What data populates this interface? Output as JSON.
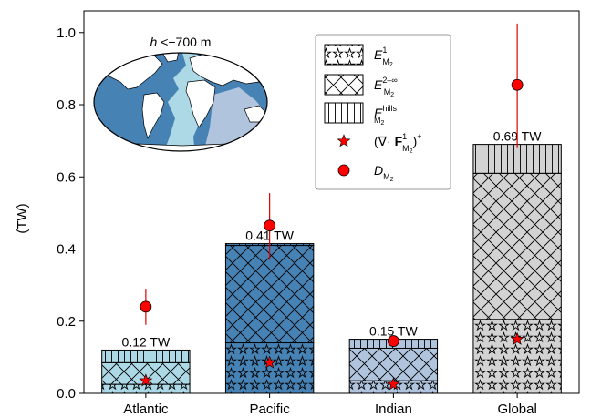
{
  "chart_data": {
    "type": "bar",
    "stacked": true,
    "ylabel": "(TW)",
    "ylim": [
      0,
      1.06
    ],
    "yticks": [
      0.0,
      0.2,
      0.4,
      0.6,
      0.8,
      1.0
    ],
    "ytick_labels": [
      "0.0",
      "0.2",
      "0.4",
      "0.6",
      "0.8",
      "1.0"
    ],
    "categories": [
      "Atlantic",
      "Pacific",
      "Indian",
      "Global"
    ],
    "bar_colors": [
      "#add8e6",
      "#4682b4",
      "#b0c4de",
      "#d3d3d3"
    ],
    "stack_series": [
      {
        "legend_key": "E_M2_1",
        "pattern": "stars",
        "values": [
          0.025,
          0.14,
          0.035,
          0.205
        ]
      },
      {
        "legend_key": "E_M2_2inf",
        "pattern": "crosshatch",
        "values": [
          0.06,
          0.27,
          0.09,
          0.405
        ]
      },
      {
        "legend_key": "E_M2_hills",
        "pattern": "vertical-lines",
        "values": [
          0.035,
          0.005,
          0.025,
          0.08
        ]
      }
    ],
    "totals": [
      0.12,
      0.41,
      0.15,
      0.69
    ],
    "total_labels": [
      "0.12 TW",
      "0.41 TW",
      "0.15 TW",
      "0.69 TW"
    ],
    "star_values": [
      0.035,
      0.085,
      0.025,
      0.15
    ],
    "dissipation": {
      "values": [
        0.24,
        0.465,
        0.145,
        0.855
      ],
      "err_low": [
        0.19,
        0.37,
        0.13,
        0.68
      ],
      "err_high": [
        0.29,
        0.555,
        0.16,
        1.025
      ]
    },
    "legend_position": "top-right",
    "grid": false
  },
  "legend": {
    "items": [
      {
        "key": "E_M2_1",
        "base": "E",
        "sup": "1",
        "sub": "M",
        "subsub": "2",
        "symbol": "stars-box"
      },
      {
        "key": "E_M2_2inf",
        "base": "E",
        "sup": "2–∞",
        "sub": "M",
        "subsub": "2",
        "symbol": "hatch-box"
      },
      {
        "key": "E_M2_hills",
        "base": "E",
        "sup": "hills",
        "sub": "M",
        "subsub": "2",
        "symbol": "vline-box"
      },
      {
        "key": "divF",
        "pre": "(∇· ",
        "bold": "F",
        "sup": "1",
        "sub": "M",
        "subsub": "2",
        "post": ")",
        "postsup": "+",
        "symbol": "red-star"
      },
      {
        "key": "D_M2",
        "base": "D",
        "sub": "M",
        "subsub": "2",
        "symbol": "red-circle"
      }
    ]
  },
  "inset_map": {
    "title_italic": "h",
    "title_rest": " <−700 m",
    "colors": {
      "land": "#ffffff",
      "ocean_outer": "#4682b4",
      "atlantic": "#add8e6",
      "indian": "#b0c4de"
    }
  },
  "colors": {
    "marker_red": "#ff0000",
    "errorbar_red": "#e00000",
    "outline": "#000000"
  }
}
